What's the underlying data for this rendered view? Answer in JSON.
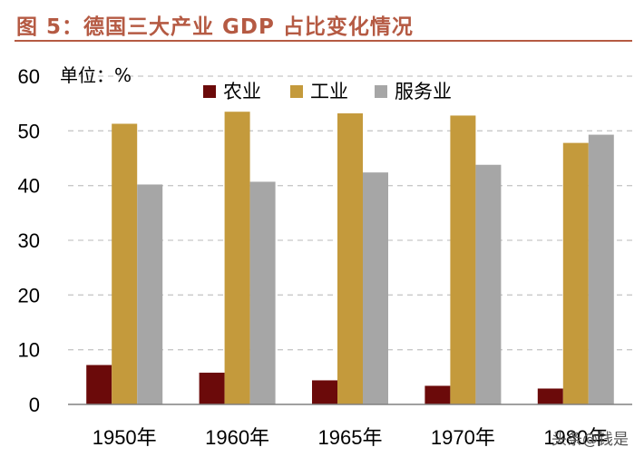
{
  "title": "图 5：德国三大产业 GDP 占比变化情况",
  "unit_label": "单位：%",
  "watermark": "头条@钱是",
  "colors": {
    "title": "#b55a43",
    "agriculture": "#6b0a0a",
    "industry": "#c49a3c",
    "services": "#a6a6a6",
    "grid": "#c8c8c8"
  },
  "chart_data": {
    "type": "bar",
    "categories": [
      "1950年",
      "1960年",
      "1965年",
      "1970年",
      "1980年"
    ],
    "series": [
      {
        "name": "农业",
        "values": [
          7.2,
          5.8,
          4.4,
          3.4,
          2.9
        ]
      },
      {
        "name": "工业",
        "values": [
          51.3,
          53.5,
          53.2,
          52.8,
          47.8
        ]
      },
      {
        "name": "服务业",
        "values": [
          40.2,
          40.7,
          42.4,
          43.8,
          49.3
        ]
      }
    ],
    "yticks": [
      0,
      10,
      20,
      30,
      40,
      50,
      60
    ],
    "ylim": [
      0,
      60
    ],
    "grid": true,
    "legend_position": "top-center"
  }
}
